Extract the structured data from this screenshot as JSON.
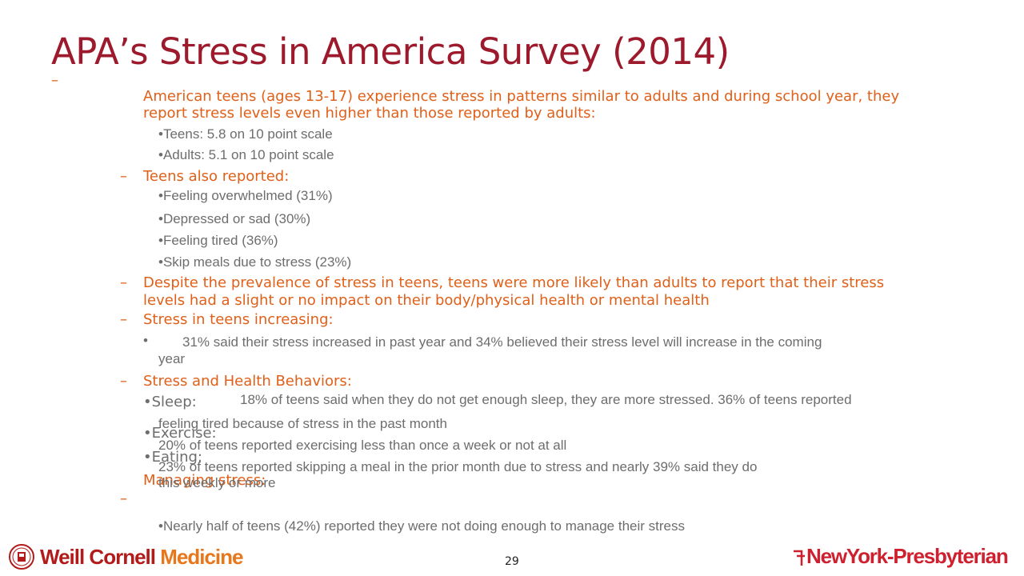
{
  "title": "APA’s Stress in America Survey (2014)",
  "dash": "–",
  "intro": {
    "line1": "American teens (ages 13-17) experience stress in patterns similar to adults and during school year, they",
    "line2": "report stress levels even higher than those reported by adults:"
  },
  "scores": [
    "•Teens: 5.8 on 10 point scale",
    "•Adults: 5.1 on 10 point scale"
  ],
  "teens_reported": {
    "heading": "Teens also reported:",
    "items": [
      "•Feeling overwhelmed (31%)",
      "•Depressed or sad (30%)",
      "•Feeling tired (36%)",
      "•Skip meals due to stress (23%)"
    ]
  },
  "despite": {
    "line1": "Despite the prevalence of stress in teens, teens were more likely than adults to report that their stress",
    "line2": "levels had a slight or no impact on their body/physical health or mental health"
  },
  "increasing": {
    "heading": "Stress in teens increasing:",
    "bullet": "•",
    "line1": "31% said their stress increased in past year and 34% believed their stress level will increase in the coming",
    "line2": "year"
  },
  "behaviors": {
    "heading": "Stress and Health Behaviors:",
    "sleep_label": "•Sleep:",
    "sleep_line1": "18% of teens said when they do not get enough sleep, they are more stressed. 36% of teens reported",
    "sleep_line2": "feeling tired because of stress in the past month",
    "exercise_label": "•Exercise:",
    "exercise_text": "20% of teens reported exercising less than once a week or not at all",
    "eating_label": "•Eating:",
    "eating_line1": "23% of teens reported skipping a meal in the prior month due to stress and nearly 39% said they do",
    "eating_line2": "this weekly or more"
  },
  "managing": {
    "heading": "Managing stress:",
    "item": "•Nearly half of teens (42%) reported they were not doing enough to manage their stress"
  },
  "footer": {
    "logo_left_a": "Weill Cornell ",
    "logo_left_b": "Medicine",
    "page_number": "29",
    "logo_right": "NewYork-Presbyterian"
  },
  "colors": {
    "title": "#9c1a2c",
    "orange": "#e0601a",
    "gray": "#6d6d6d"
  }
}
